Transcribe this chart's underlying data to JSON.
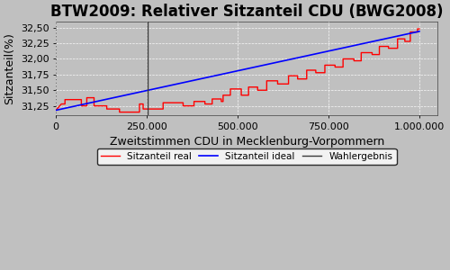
{
  "title": "BTW2009: Relativer Sitzanteil CDU (BWG2008)",
  "xlabel": "Zweitstimmen CDU in Mecklenburg-Vorpommern",
  "ylabel": "Sitzanteil(%)",
  "xlim": [
    0,
    1050000
  ],
  "ylim": [
    31.1,
    32.6
  ],
  "yticks": [
    31.25,
    31.5,
    31.75,
    32.0,
    32.25,
    32.5
  ],
  "ytick_labels": [
    "31,25",
    "31,50",
    "31,75",
    "32,00",
    "32,25",
    "32,50"
  ],
  "xticks": [
    0,
    250000,
    500000,
    750000,
    1000000
  ],
  "xtick_labels": [
    "0",
    "250.000",
    "500.000",
    "750.000",
    "1.000.000"
  ],
  "wahlergebnis_x": 252000,
  "bg_color": "#c0c0c0",
  "line_real_color": "red",
  "line_ideal_color": "blue",
  "line_wahlergebnis_color": "#3a3a3a",
  "legend_labels": [
    "Sitzanteil real",
    "Sitzanteil ideal",
    "Wahlergebnis"
  ],
  "title_fontsize": 12,
  "axis_fontsize": 8,
  "label_fontsize": 9,
  "ideal_start": 31.18,
  "ideal_end": 32.44,
  "x_max": 1000000
}
